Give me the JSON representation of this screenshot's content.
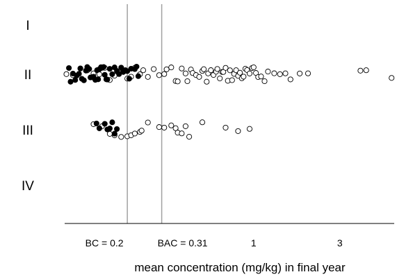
{
  "chart_data": {
    "type": "scatter",
    "xlabel": "mean concentration (mg/kg) in final year",
    "ylabel": "",
    "x_scale": "log",
    "xlim": [
      0.09,
      6.0
    ],
    "categories": [
      "I",
      "II",
      "III",
      "IV"
    ],
    "reference_lines": [
      {
        "label": "BC = 0.2",
        "value": 0.2
      },
      {
        "label": "BAC = 0.31",
        "value": 0.31
      }
    ],
    "x_tick_labels": [
      {
        "label": "1",
        "value": 1
      },
      {
        "label": "3",
        "value": 3
      }
    ],
    "grid": false,
    "legend": "none",
    "colors": {
      "filled": "#000000",
      "open_stroke": "#000000",
      "reference_line": "#a0a0a0",
      "axis": "#000000"
    },
    "series": [
      {
        "marker": "filled",
        "points": [
          {
            "category": "II",
            "x": 0.095
          },
          {
            "category": "II",
            "x": 0.097
          },
          {
            "category": "II",
            "x": 0.1
          },
          {
            "category": "II",
            "x": 0.103
          },
          {
            "category": "II",
            "x": 0.105
          },
          {
            "category": "II",
            "x": 0.108
          },
          {
            "category": "II",
            "x": 0.11
          },
          {
            "category": "II",
            "x": 0.112
          },
          {
            "category": "II",
            "x": 0.115
          },
          {
            "category": "II",
            "x": 0.118
          },
          {
            "category": "II",
            "x": 0.12
          },
          {
            "category": "II",
            "x": 0.123
          },
          {
            "category": "II",
            "x": 0.125
          },
          {
            "category": "II",
            "x": 0.128
          },
          {
            "category": "II",
            "x": 0.13
          },
          {
            "category": "II",
            "x": 0.133
          },
          {
            "category": "II",
            "x": 0.136
          },
          {
            "category": "II",
            "x": 0.138
          },
          {
            "category": "II",
            "x": 0.14
          },
          {
            "category": "II",
            "x": 0.143
          },
          {
            "category": "II",
            "x": 0.145
          },
          {
            "category": "II",
            "x": 0.148
          },
          {
            "category": "II",
            "x": 0.15
          },
          {
            "category": "II",
            "x": 0.153
          },
          {
            "category": "II",
            "x": 0.155
          },
          {
            "category": "II",
            "x": 0.16
          },
          {
            "category": "II",
            "x": 0.165
          },
          {
            "category": "II",
            "x": 0.17
          },
          {
            "category": "II",
            "x": 0.175
          },
          {
            "category": "II",
            "x": 0.18
          },
          {
            "category": "II",
            "x": 0.185
          },
          {
            "category": "II",
            "x": 0.19
          },
          {
            "category": "II",
            "x": 0.195
          },
          {
            "category": "II",
            "x": 0.2
          },
          {
            "category": "II",
            "x": 0.205
          },
          {
            "category": "II",
            "x": 0.21
          },
          {
            "category": "II",
            "x": 0.22
          },
          {
            "category": "II",
            "x": 0.225
          },
          {
            "category": "II",
            "x": 0.23
          },
          {
            "category": "III",
            "x": 0.135
          },
          {
            "category": "III",
            "x": 0.14
          },
          {
            "category": "III",
            "x": 0.15
          },
          {
            "category": "III",
            "x": 0.155
          },
          {
            "category": "III",
            "x": 0.16
          },
          {
            "category": "III",
            "x": 0.165
          },
          {
            "category": "III",
            "x": 0.17
          },
          {
            "category": "III",
            "x": 0.175
          }
        ]
      },
      {
        "marker": "open",
        "points": [
          {
            "category": "II",
            "x": 0.092
          },
          {
            "category": "II",
            "x": 0.1
          },
          {
            "category": "II",
            "x": 0.11
          },
          {
            "category": "II",
            "x": 0.12
          },
          {
            "category": "II",
            "x": 0.13
          },
          {
            "category": "II",
            "x": 0.14
          },
          {
            "category": "II",
            "x": 0.15
          },
          {
            "category": "II",
            "x": 0.16
          },
          {
            "category": "II",
            "x": 0.17
          },
          {
            "category": "II",
            "x": 0.18
          },
          {
            "category": "II",
            "x": 0.19
          },
          {
            "category": "II",
            "x": 0.2
          },
          {
            "category": "II",
            "x": 0.21
          },
          {
            "category": "II",
            "x": 0.22
          },
          {
            "category": "II",
            "x": 0.235
          },
          {
            "category": "II",
            "x": 0.245
          },
          {
            "category": "II",
            "x": 0.26
          },
          {
            "category": "II",
            "x": 0.28
          },
          {
            "category": "II",
            "x": 0.3
          },
          {
            "category": "II",
            "x": 0.32
          },
          {
            "category": "II",
            "x": 0.33
          },
          {
            "category": "II",
            "x": 0.35
          },
          {
            "category": "II",
            "x": 0.37
          },
          {
            "category": "II",
            "x": 0.38
          },
          {
            "category": "II",
            "x": 0.4
          },
          {
            "category": "II",
            "x": 0.42
          },
          {
            "category": "II",
            "x": 0.43
          },
          {
            "category": "II",
            "x": 0.45
          },
          {
            "category": "II",
            "x": 0.46
          },
          {
            "category": "II",
            "x": 0.48
          },
          {
            "category": "II",
            "x": 0.5
          },
          {
            "category": "II",
            "x": 0.52
          },
          {
            "category": "II",
            "x": 0.53
          },
          {
            "category": "II",
            "x": 0.55
          },
          {
            "category": "II",
            "x": 0.56
          },
          {
            "category": "II",
            "x": 0.58
          },
          {
            "category": "II",
            "x": 0.6
          },
          {
            "category": "II",
            "x": 0.62
          },
          {
            "category": "II",
            "x": 0.63
          },
          {
            "category": "II",
            "x": 0.65
          },
          {
            "category": "II",
            "x": 0.67
          },
          {
            "category": "II",
            "x": 0.68
          },
          {
            "category": "II",
            "x": 0.7
          },
          {
            "category": "II",
            "x": 0.72
          },
          {
            "category": "II",
            "x": 0.74
          },
          {
            "category": "II",
            "x": 0.76
          },
          {
            "category": "II",
            "x": 0.78
          },
          {
            "category": "II",
            "x": 0.8
          },
          {
            "category": "II",
            "x": 0.82
          },
          {
            "category": "II",
            "x": 0.84
          },
          {
            "category": "II",
            "x": 0.86
          },
          {
            "category": "II",
            "x": 0.88
          },
          {
            "category": "II",
            "x": 0.9
          },
          {
            "category": "II",
            "x": 0.92
          },
          {
            "category": "II",
            "x": 0.95
          },
          {
            "category": "II",
            "x": 0.98
          },
          {
            "category": "II",
            "x": 1.0
          },
          {
            "category": "II",
            "x": 1.03
          },
          {
            "category": "II",
            "x": 1.06
          },
          {
            "category": "II",
            "x": 1.1
          },
          {
            "category": "II",
            "x": 1.15
          },
          {
            "category": "II",
            "x": 1.2
          },
          {
            "category": "II",
            "x": 1.3
          },
          {
            "category": "II",
            "x": 1.4
          },
          {
            "category": "II",
            "x": 1.5
          },
          {
            "category": "II",
            "x": 1.6
          },
          {
            "category": "II",
            "x": 1.8
          },
          {
            "category": "II",
            "x": 2.0
          },
          {
            "category": "II",
            "x": 3.9
          },
          {
            "category": "II",
            "x": 4.2
          },
          {
            "category": "II",
            "x": 5.8
          },
          {
            "category": "III",
            "x": 0.13
          },
          {
            "category": "III",
            "x": 0.145
          },
          {
            "category": "III",
            "x": 0.16
          },
          {
            "category": "III",
            "x": 0.17
          },
          {
            "category": "III",
            "x": 0.185
          },
          {
            "category": "III",
            "x": 0.2
          },
          {
            "category": "III",
            "x": 0.21
          },
          {
            "category": "III",
            "x": 0.22
          },
          {
            "category": "III",
            "x": 0.235
          },
          {
            "category": "III",
            "x": 0.24
          },
          {
            "category": "III",
            "x": 0.26
          },
          {
            "category": "III",
            "x": 0.3
          },
          {
            "category": "III",
            "x": 0.32
          },
          {
            "category": "III",
            "x": 0.35
          },
          {
            "category": "III",
            "x": 0.37
          },
          {
            "category": "III",
            "x": 0.38
          },
          {
            "category": "III",
            "x": 0.4
          },
          {
            "category": "III",
            "x": 0.42
          },
          {
            "category": "III",
            "x": 0.44
          },
          {
            "category": "III",
            "x": 0.52
          },
          {
            "category": "III",
            "x": 0.7
          },
          {
            "category": "III",
            "x": 0.82
          },
          {
            "category": "III",
            "x": 0.95
          }
        ]
      }
    ]
  }
}
